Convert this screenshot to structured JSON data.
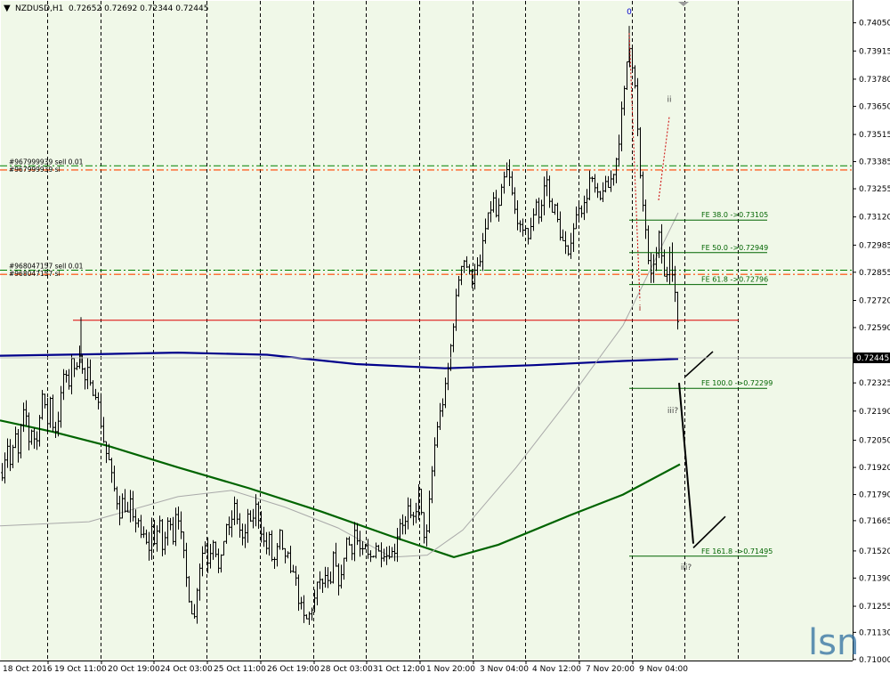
{
  "header": {
    "arrow": "▼",
    "symbol_timeframe": "NZDUSD,H1",
    "ohlc": "0.72652 0.72692 0.72344 0.72445"
  },
  "watermark": "lsn",
  "colors": {
    "background": "#F0F8E8",
    "candles": "#000000",
    "grid": "#000000",
    "ma_blue": "#00008B",
    "ma_green": "#006400",
    "ma_grey": "#A9A9A9",
    "order_green": "#008000",
    "order_orange": "#FF4500",
    "resistance_red": "#DC0000",
    "fe_line": "#006400",
    "projection": "#000000"
  },
  "chart_data": {
    "type": "candlestick",
    "symbol": "NZDUSD",
    "timeframe": "H1",
    "last_price": 0.72445,
    "ylim": [
      0.70995,
      0.74155
    ],
    "y_ticks": [
      0.71,
      0.7113,
      0.71255,
      0.7139,
      0.7152,
      0.71665,
      0.7179,
      0.7192,
      0.7205,
      0.7219,
      0.72325,
      0.72455,
      0.7259,
      0.7272,
      0.72855,
      0.72985,
      0.7312,
      0.73255,
      0.73385,
      0.73515,
      0.7365,
      0.7378,
      0.73915,
      0.7405
    ],
    "x_labels": [
      "18 Oct 2016",
      "19 Oct 11:00",
      "20 Oct 19:00",
      "24 Oct 03:00",
      "25 Oct 11:00",
      "26 Oct 19:00",
      "28 Oct 03:00",
      "31 Oct 12:00",
      "1 Nov 20:00",
      "3 Nov 04:00",
      "4 Nov 12:00",
      "7 Nov 20:00",
      "9 Nov 04:00"
    ],
    "price_path": [
      [
        0,
        0.7184
      ],
      [
        4,
        0.7195
      ],
      [
        8,
        0.7203
      ],
      [
        12,
        0.719
      ],
      [
        16,
        0.721
      ],
      [
        20,
        0.7198
      ],
      [
        24,
        0.7215
      ],
      [
        28,
        0.722
      ],
      [
        32,
        0.7205
      ],
      [
        36,
        0.7212
      ],
      [
        40,
        0.72
      ],
      [
        44,
        0.7218
      ],
      [
        48,
        0.723
      ],
      [
        52,
        0.721
      ],
      [
        56,
        0.7225
      ],
      [
        60,
        0.7208
      ],
      [
        64,
        0.7212
      ],
      [
        68,
        0.7226
      ],
      [
        72,
        0.724
      ],
      [
        76,
        0.7228
      ],
      [
        80,
        0.7245
      ],
      [
        84,
        0.7235
      ],
      [
        88,
        0.725
      ],
      [
        90,
        0.7245
      ],
      [
        94,
        0.7232
      ],
      [
        98,
        0.7238
      ],
      [
        102,
        0.7228
      ],
      [
        106,
        0.723
      ],
      [
        110,
        0.7222
      ],
      [
        114,
        0.721
      ],
      [
        118,
        0.72
      ],
      [
        122,
        0.7195
      ],
      [
        126,
        0.7185
      ],
      [
        130,
        0.7178
      ],
      [
        134,
        0.717
      ],
      [
        138,
        0.7178
      ],
      [
        142,
        0.7168
      ],
      [
        146,
        0.7175
      ],
      [
        150,
        0.7163
      ],
      [
        154,
        0.717
      ],
      [
        158,
        0.7158
      ],
      [
        162,
        0.716
      ],
      [
        166,
        0.715
      ],
      [
        170,
        0.7163
      ],
      [
        174,
        0.7155
      ],
      [
        178,
        0.7168
      ],
      [
        182,
        0.7153
      ],
      [
        186,
        0.716
      ],
      [
        190,
        0.717
      ],
      [
        194,
        0.7158
      ],
      [
        198,
        0.7175
      ],
      [
        202,
        0.7162
      ],
      [
        206,
        0.715
      ],
      [
        210,
        0.7135
      ],
      [
        214,
        0.7125
      ],
      [
        218,
        0.712
      ],
      [
        222,
        0.714
      ],
      [
        226,
        0.715
      ],
      [
        230,
        0.7155
      ],
      [
        234,
        0.7145
      ],
      [
        238,
        0.716
      ],
      [
        242,
        0.7152
      ],
      [
        246,
        0.714
      ],
      [
        250,
        0.7155
      ],
      [
        254,
        0.7165
      ],
      [
        258,
        0.716
      ],
      [
        262,
        0.7175
      ],
      [
        266,
        0.7168
      ],
      [
        270,
        0.716
      ],
      [
        274,
        0.7155
      ],
      [
        278,
        0.717
      ],
      [
        282,
        0.7162
      ],
      [
        286,
        0.7175
      ],
      [
        290,
        0.7168
      ],
      [
        294,
        0.716
      ],
      [
        298,
        0.7152
      ],
      [
        302,
        0.7158
      ],
      [
        306,
        0.7145
      ],
      [
        310,
        0.715
      ],
      [
        314,
        0.716
      ],
      [
        318,
        0.7148
      ],
      [
        322,
        0.7152
      ],
      [
        326,
        0.714
      ],
      [
        330,
        0.7145
      ],
      [
        334,
        0.713
      ],
      [
        338,
        0.7125
      ],
      [
        342,
        0.7118
      ],
      [
        346,
        0.712
      ],
      [
        350,
        0.7125
      ],
      [
        354,
        0.713
      ],
      [
        358,
        0.714
      ],
      [
        362,
        0.7135
      ],
      [
        366,
        0.7142
      ],
      [
        370,
        0.713
      ],
      [
        374,
        0.715
      ],
      [
        378,
        0.714
      ],
      [
        382,
        0.7135
      ],
      [
        386,
        0.715
      ],
      [
        390,
        0.716
      ],
      [
        394,
        0.715
      ],
      [
        398,
        0.7162
      ],
      [
        402,
        0.7155
      ],
      [
        406,
        0.715
      ],
      [
        410,
        0.7153
      ],
      [
        414,
        0.7148
      ],
      [
        418,
        0.715
      ],
      [
        422,
        0.7155
      ],
      [
        426,
        0.715
      ],
      [
        430,
        0.7152
      ],
      [
        434,
        0.715
      ],
      [
        438,
        0.7152
      ],
      [
        442,
        0.715
      ],
      [
        446,
        0.716
      ],
      [
        450,
        0.7168
      ],
      [
        454,
        0.7163
      ],
      [
        458,
        0.7172
      ],
      [
        462,
        0.7165
      ],
      [
        466,
        0.717
      ],
      [
        470,
        0.718
      ],
      [
        474,
        0.7165
      ],
      [
        478,
        0.7155
      ],
      [
        482,
        0.7175
      ],
      [
        486,
        0.7195
      ],
      [
        490,
        0.721
      ],
      [
        494,
        0.7218
      ],
      [
        498,
        0.7225
      ],
      [
        502,
        0.7235
      ],
      [
        506,
        0.725
      ],
      [
        510,
        0.7265
      ],
      [
        514,
        0.728
      ],
      [
        518,
        0.729
      ],
      [
        522,
        0.7292
      ],
      [
        526,
        0.7285
      ],
      [
        530,
        0.7282
      ],
      [
        534,
        0.729
      ],
      [
        538,
        0.7285
      ],
      [
        542,
        0.73
      ],
      [
        546,
        0.7308
      ],
      [
        550,
        0.7315
      ],
      [
        554,
        0.732
      ],
      [
        558,
        0.731
      ],
      [
        562,
        0.7322
      ],
      [
        566,
        0.733
      ],
      [
        570,
        0.7335
      ],
      [
        574,
        0.7325
      ],
      [
        578,
        0.7315
      ],
      [
        582,
        0.731
      ],
      [
        586,
        0.7302
      ],
      [
        590,
        0.7308
      ],
      [
        594,
        0.73
      ],
      [
        598,
        0.7312
      ],
      [
        602,
        0.732
      ],
      [
        606,
        0.731
      ],
      [
        610,
        0.7325
      ],
      [
        614,
        0.733
      ],
      [
        618,
        0.7315
      ],
      [
        622,
        0.7318
      ],
      [
        626,
        0.731
      ],
      [
        630,
        0.7302
      ],
      [
        634,
        0.7298
      ],
      [
        638,
        0.7292
      ],
      [
        642,
        0.7305
      ],
      [
        646,
        0.731
      ],
      [
        650,
        0.7318
      ],
      [
        654,
        0.7315
      ],
      [
        658,
        0.732
      ],
      [
        662,
        0.733
      ],
      [
        666,
        0.7328
      ],
      [
        670,
        0.7322
      ],
      [
        674,
        0.732
      ],
      [
        678,
        0.7328
      ],
      [
        682,
        0.7325
      ],
      [
        686,
        0.733
      ],
      [
        690,
        0.7335
      ],
      [
        694,
        0.7345
      ],
      [
        698,
        0.7362
      ],
      [
        702,
        0.7375
      ],
      [
        706,
        0.7398
      ],
      [
        709,
        0.7388
      ],
      [
        712,
        0.738
      ],
      [
        715,
        0.7362
      ],
      [
        718,
        0.7335
      ],
      [
        721,
        0.732
      ],
      [
        724,
        0.7312
      ],
      [
        727,
        0.7295
      ],
      [
        730,
        0.7278
      ],
      [
        733,
        0.7292
      ],
      [
        736,
        0.7288
      ],
      [
        739,
        0.7305
      ],
      [
        742,
        0.7298
      ],
      [
        745,
        0.7285
      ],
      [
        748,
        0.7278
      ],
      [
        751,
        0.73
      ],
      [
        754,
        0.7292
      ],
      [
        757,
        0.7276
      ],
      [
        760,
        0.7275
      ],
      [
        762,
        0.72445
      ]
    ],
    "horizontal_levels": [
      {
        "label": "#967999939 sell 0.01",
        "price": 0.73365,
        "kind": "order-green"
      },
      {
        "label": "#967999939 sl",
        "price": 0.73345,
        "kind": "order-orange"
      },
      {
        "label": "#968047157 sell 0.01",
        "price": 0.72865,
        "kind": "order-green"
      },
      {
        "label": "#968047157 sl",
        "price": 0.72845,
        "kind": "order-orange"
      },
      {
        "price": 0.72625,
        "kind": "resistance-red"
      }
    ],
    "fe_levels": [
      {
        "label": "FE 38.0 ->0.73105",
        "price": 0.73105
      },
      {
        "label": "FE 50.0 ->0.72949",
        "price": 0.72949
      },
      {
        "label": "FE 61.8 ->0.72796",
        "price": 0.72796
      },
      {
        "label": "FE 100.0 ->0.72299",
        "price": 0.72299
      },
      {
        "label": "FE 161.8 ->0.71495",
        "price": 0.71495
      }
    ],
    "wave_labels": [
      {
        "text": "0",
        "color": "#0000CC",
        "x": 707,
        "price": 0.7409
      },
      {
        "text": "ii",
        "color": "#444444",
        "x": 752,
        "price": 0.7367
      },
      {
        "text": "i",
        "color": "#990000",
        "x": 719,
        "price": 0.7267
      },
      {
        "text": "iii?",
        "color": "#444444",
        "x": 756,
        "price": 0.7218
      },
      {
        "text": "iii?",
        "color": "#444444",
        "x": 771,
        "price": 0.7143
      }
    ],
    "moving_averages": [
      {
        "color": "blue",
        "points": [
          [
            0,
            0.72455
          ],
          [
            100,
            0.72462
          ],
          [
            200,
            0.7247
          ],
          [
            300,
            0.7246
          ],
          [
            400,
            0.72415
          ],
          [
            500,
            0.72395
          ],
          [
            600,
            0.7241
          ],
          [
            700,
            0.7243
          ],
          [
            762,
            0.7244
          ]
        ]
      },
      {
        "color": "green",
        "points": [
          [
            0,
            0.72145
          ],
          [
            60,
            0.7209
          ],
          [
            120,
            0.72025
          ],
          [
            200,
            0.7192
          ],
          [
            280,
            0.7182
          ],
          [
            360,
            0.7171
          ],
          [
            440,
            0.7159
          ],
          [
            510,
            0.7149
          ],
          [
            560,
            0.7155
          ],
          [
            640,
            0.7169
          ],
          [
            700,
            0.7179
          ],
          [
            764,
            0.71935
          ]
        ]
      },
      {
        "color": "grey",
        "points": [
          [
            0,
            0.7164
          ],
          [
            100,
            0.7166
          ],
          [
            200,
            0.7178
          ],
          [
            260,
            0.7181
          ],
          [
            320,
            0.7173
          ],
          [
            380,
            0.7163
          ],
          [
            440,
            0.7149
          ],
          [
            480,
            0.715
          ],
          [
            520,
            0.7162
          ],
          [
            580,
            0.7192
          ],
          [
            640,
            0.7225
          ],
          [
            700,
            0.726
          ],
          [
            762,
            0.7314
          ]
        ]
      }
    ],
    "projection": {
      "main": [
        [
          763,
          0.72325
        ],
        [
          779,
          0.71555
        ]
      ],
      "ticks": [
        [
          [
            770,
            0.72355
          ],
          [
            801,
            0.72475
          ]
        ],
        [
          [
            779,
            0.71535
          ],
          [
            815,
            0.71685
          ]
        ]
      ]
    },
    "grid": true
  }
}
